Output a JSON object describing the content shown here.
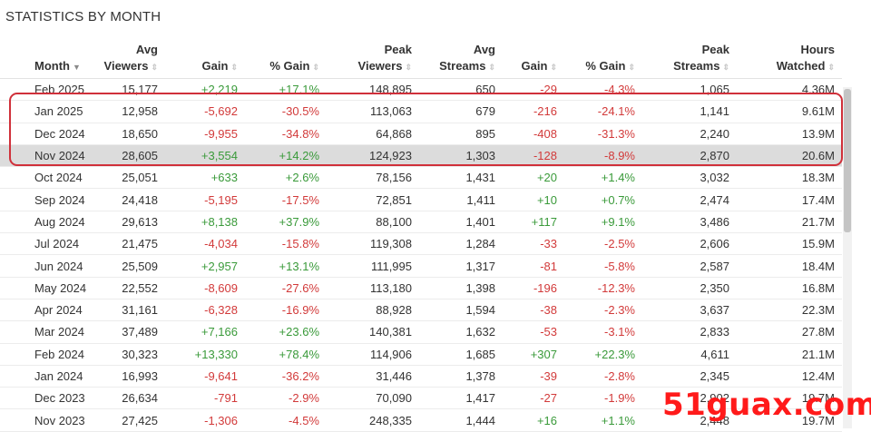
{
  "title": "STATISTICS BY MONTH",
  "columns": [
    {
      "line1": "",
      "line2": "Month",
      "sort": "down-active"
    },
    {
      "line1": "Avg",
      "line2": "Viewers",
      "sort": "both"
    },
    {
      "line1": "",
      "line2": "Gain",
      "sort": "both"
    },
    {
      "line1": "",
      "line2": "% Gain",
      "sort": "both"
    },
    {
      "line1": "Peak",
      "line2": "Viewers",
      "sort": "both"
    },
    {
      "line1": "Avg",
      "line2": "Streams",
      "sort": "both"
    },
    {
      "line1": "",
      "line2": "Gain",
      "sort": "both"
    },
    {
      "line1": "",
      "line2": "% Gain",
      "sort": "both"
    },
    {
      "line1": "Peak",
      "line2": "Streams",
      "sort": "both"
    },
    {
      "line1": "Hours",
      "line2": "Watched",
      "sort": "both"
    }
  ],
  "rows": [
    [
      "Feb 2025",
      "15,177",
      "+2,219",
      "+17.1%",
      "148,895",
      "650",
      "-29",
      "-4.3%",
      "1,065",
      "4.36M"
    ],
    [
      "Jan 2025",
      "12,958",
      "-5,692",
      "-30.5%",
      "113,063",
      "679",
      "-216",
      "-24.1%",
      "1,141",
      "9.61M"
    ],
    [
      "Dec 2024",
      "18,650",
      "-9,955",
      "-34.8%",
      "64,868",
      "895",
      "-408",
      "-31.3%",
      "2,240",
      "13.9M"
    ],
    [
      "Nov 2024",
      "28,605",
      "+3,554",
      "+14.2%",
      "124,923",
      "1,303",
      "-128",
      "-8.9%",
      "2,870",
      "20.6M"
    ],
    [
      "Oct 2024",
      "25,051",
      "+633",
      "+2.6%",
      "78,156",
      "1,431",
      "+20",
      "+1.4%",
      "3,032",
      "18.3M"
    ],
    [
      "Sep 2024",
      "24,418",
      "-5,195",
      "-17.5%",
      "72,851",
      "1,411",
      "+10",
      "+0.7%",
      "2,474",
      "17.4M"
    ],
    [
      "Aug 2024",
      "29,613",
      "+8,138",
      "+37.9%",
      "88,100",
      "1,401",
      "+117",
      "+9.1%",
      "3,486",
      "21.7M"
    ],
    [
      "Jul 2024",
      "21,475",
      "-4,034",
      "-15.8%",
      "119,308",
      "1,284",
      "-33",
      "-2.5%",
      "2,606",
      "15.9M"
    ],
    [
      "Jun 2024",
      "25,509",
      "+2,957",
      "+13.1%",
      "111,995",
      "1,317",
      "-81",
      "-5.8%",
      "2,587",
      "18.4M"
    ],
    [
      "May 2024",
      "22,552",
      "-8,609",
      "-27.6%",
      "113,180",
      "1,398",
      "-196",
      "-12.3%",
      "2,350",
      "16.8M"
    ],
    [
      "Apr 2024",
      "31,161",
      "-6,328",
      "-16.9%",
      "88,928",
      "1,594",
      "-38",
      "-2.3%",
      "3,637",
      "22.3M"
    ],
    [
      "Mar 2024",
      "37,489",
      "+7,166",
      "+23.6%",
      "140,381",
      "1,632",
      "-53",
      "-3.1%",
      "2,833",
      "27.8M"
    ],
    [
      "Feb 2024",
      "30,323",
      "+13,330",
      "+78.4%",
      "114,906",
      "1,685",
      "+307",
      "+22.3%",
      "4,611",
      "21.1M"
    ],
    [
      "Jan 2024",
      "16,993",
      "-9,641",
      "-36.2%",
      "31,446",
      "1,378",
      "-39",
      "-2.8%",
      "2,345",
      "12.4M"
    ],
    [
      "Dec 2023",
      "26,634",
      "-791",
      "-2.9%",
      "70,090",
      "1,417",
      "-27",
      "-1.9%",
      "2,902",
      "19.7M"
    ],
    [
      "Nov 2023",
      "27,425",
      "-1,306",
      "-4.5%",
      "248,335",
      "1,444",
      "+16",
      "+1.1%",
      "2,448",
      "19.7M"
    ]
  ],
  "shaded_row_index": 3,
  "highlighted_rows": [
    "Jan 2025",
    "Dec 2024",
    "Nov 2024"
  ],
  "colors": {
    "positive": "#3a9a3a",
    "negative": "#d23a3a",
    "highlight_border": "#d0303a",
    "watermark": "#ff1a1a"
  },
  "watermark": "51guax.com"
}
